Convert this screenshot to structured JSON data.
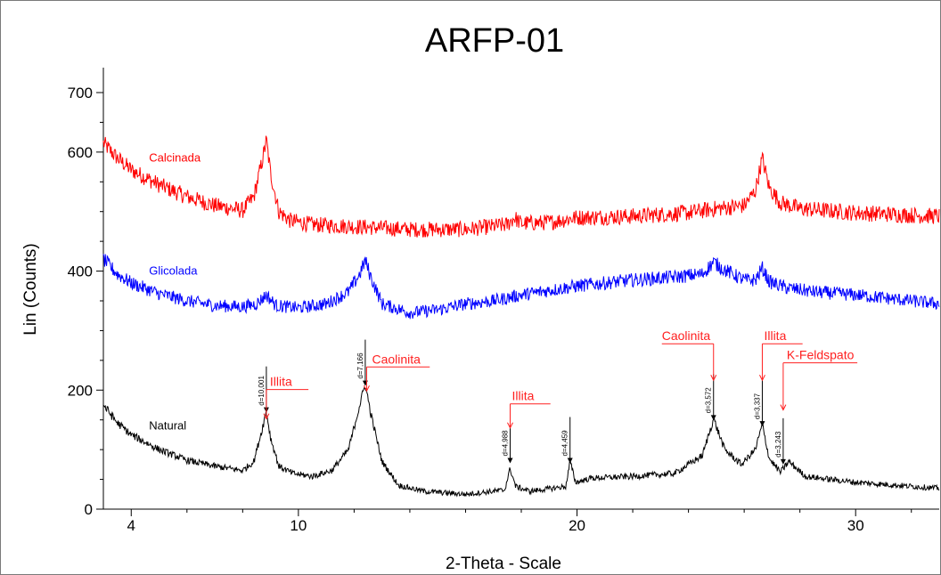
{
  "chart_data": {
    "type": "line",
    "title": "ARFP-01",
    "xlabel": "2-Theta - Scale",
    "ylabel": "Lin (Counts)",
    "xlim": [
      3.0,
      33.0
    ],
    "ylim": [
      0,
      700
    ],
    "x_ticks": [
      4,
      10,
      20,
      30
    ],
    "y_ticks": [
      0,
      200,
      400,
      600,
      700
    ],
    "grid": false,
    "series": [
      {
        "name": "Calcinada",
        "color": "#ff0000",
        "x": [
          3.0,
          3.5,
          4.0,
          5.0,
          6.0,
          7.0,
          8.0,
          8.4,
          8.7,
          8.85,
          9.0,
          9.3,
          9.7,
          10.5,
          12.0,
          14.0,
          16.0,
          17.5,
          17.75,
          18.0,
          19.0,
          20.0,
          22.0,
          24.0,
          25.0,
          26.0,
          26.4,
          26.65,
          26.9,
          27.3,
          28.0,
          30.0,
          33.0
        ],
        "y": [
          615,
          590,
          570,
          545,
          525,
          510,
          502,
          525,
          585,
          620,
          565,
          500,
          485,
          478,
          475,
          470,
          470,
          478,
          490,
          480,
          482,
          490,
          492,
          498,
          505,
          510,
          535,
          590,
          540,
          515,
          505,
          498,
          492
        ]
      },
      {
        "name": "Glicolada",
        "color": "#0000ff",
        "x": [
          3.0,
          3.5,
          4.0,
          5.0,
          6.0,
          7.0,
          8.0,
          8.5,
          8.85,
          9.2,
          10.0,
          11.0,
          11.8,
          12.2,
          12.4,
          12.6,
          13.0,
          14.0,
          15.0,
          16.0,
          17.0,
          18.0,
          20.0,
          22.0,
          23.5,
          24.5,
          24.9,
          25.3,
          26.0,
          26.4,
          26.65,
          26.9,
          27.5,
          28.5,
          30.0,
          33.0
        ],
        "y": [
          420,
          395,
          380,
          362,
          350,
          342,
          340,
          345,
          360,
          342,
          338,
          345,
          365,
          395,
          418,
          390,
          345,
          330,
          335,
          345,
          350,
          360,
          375,
          385,
          390,
          395,
          415,
          402,
          385,
          385,
          405,
          382,
          372,
          365,
          360,
          345
        ]
      },
      {
        "name": "Natural",
        "color": "#000000",
        "x": [
          3.0,
          3.5,
          4.0,
          5.0,
          6.0,
          7.0,
          8.0,
          8.4,
          8.7,
          8.85,
          9.0,
          9.3,
          9.8,
          10.5,
          11.2,
          11.8,
          12.2,
          12.4,
          12.6,
          13.0,
          13.6,
          14.5,
          16.0,
          17.4,
          17.6,
          17.8,
          18.3,
          19.6,
          19.75,
          19.95,
          20.5,
          22.0,
          23.5,
          24.5,
          24.9,
          25.3,
          25.9,
          26.4,
          26.65,
          26.9,
          27.3,
          27.6,
          28.2,
          30.0,
          33.0
        ],
        "y": [
          175,
          145,
          125,
          100,
          82,
          72,
          65,
          80,
          135,
          165,
          120,
          72,
          60,
          55,
          65,
          100,
          175,
          210,
          160,
          80,
          40,
          30,
          25,
          32,
          68,
          38,
          30,
          38,
          80,
          45,
          52,
          55,
          60,
          90,
          152,
          100,
          75,
          100,
          142,
          85,
          62,
          80,
          55,
          45,
          35
        ]
      }
    ],
    "annotations": [
      {
        "text": "Illita",
        "target_x": 8.85,
        "target_y": 165
      },
      {
        "text": "Caolinita",
        "target_x": 12.45,
        "target_y": 212
      },
      {
        "text": "Illita",
        "target_x": 17.6,
        "target_y": 150
      },
      {
        "text": "Caolinita",
        "target_x": 24.9,
        "target_y": 230
      },
      {
        "text": "Illita",
        "target_x": 26.65,
        "target_y": 230
      },
      {
        "text": "K-Feldspato",
        "target_x": 27.4,
        "target_y": 180
      }
    ],
    "d_spacing_labels": [
      {
        "text": "d=10,001",
        "x": 8.85,
        "y": 165
      },
      {
        "text": "d=7,166",
        "x": 12.4,
        "y": 210
      },
      {
        "text": "d=4,988",
        "x": 17.6,
        "y": 80
      },
      {
        "text": "d=4,459",
        "x": 19.75,
        "y": 80
      },
      {
        "text": "d=3,572",
        "x": 24.9,
        "y": 152
      },
      {
        "text": "d=3,337",
        "x": 26.65,
        "y": 142
      },
      {
        "text": "d=3,243",
        "x": 27.4,
        "y": 78
      }
    ]
  }
}
